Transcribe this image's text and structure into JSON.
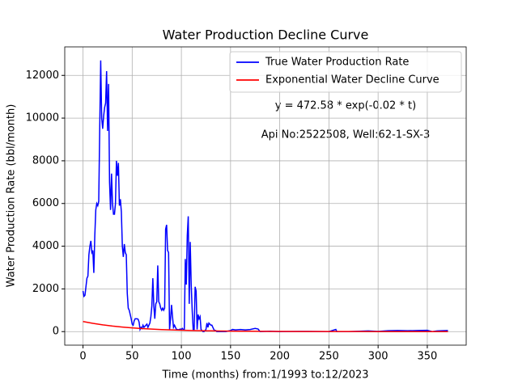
{
  "chart_data": {
    "type": "line",
    "title": "Water Production Decline Curve",
    "xlabel": "Time (months) from:1/1993 to:12/2023",
    "ylabel": "Water Production Rate (bbl/month)",
    "annotations": [
      "y = 472.58 * exp(-0.02 * t)",
      "Api No:2522508, Well:62-1-SX-3"
    ],
    "xlim": [
      -18.55,
      389.55
    ],
    "ylim": [
      -635,
      13335
    ],
    "xticks": [
      0,
      50,
      100,
      150,
      200,
      250,
      300,
      350
    ],
    "yticks": [
      0,
      2000,
      4000,
      6000,
      8000,
      10000,
      12000
    ],
    "grid": true,
    "legend": "upper right",
    "series": [
      {
        "name": "True Water Production Rate",
        "color": "#0000ff",
        "x": [
          0,
          1,
          2,
          3,
          4,
          5,
          6,
          7,
          8,
          9,
          10,
          11,
          12,
          13,
          14,
          15,
          16,
          17,
          18,
          19,
          20,
          21,
          22,
          23,
          24,
          25,
          26,
          27,
          28,
          29,
          30,
          31,
          32,
          33,
          34,
          35,
          36,
          37,
          38,
          39,
          40,
          41,
          42,
          43,
          44,
          45,
          46,
          47,
          48,
          49,
          50,
          51,
          52,
          53,
          54,
          55,
          56,
          57,
          58,
          59,
          60,
          61,
          62,
          63,
          64,
          65,
          66,
          67,
          68,
          69,
          70,
          71,
          72,
          73,
          74,
          75,
          76,
          77,
          78,
          79,
          80,
          81,
          82,
          83,
          84,
          85,
          86,
          87,
          88,
          89,
          90,
          91,
          92,
          93,
          94,
          95,
          96,
          97,
          98,
          99,
          100,
          101,
          102,
          103,
          104,
          105,
          106,
          107,
          108,
          109,
          110,
          111,
          112,
          113,
          114,
          115,
          116,
          117,
          118,
          119,
          120,
          121,
          122,
          123,
          124,
          125,
          126,
          127,
          128,
          129,
          130,
          131,
          132,
          133,
          134,
          135,
          136,
          137,
          138,
          139,
          140,
          141,
          142,
          145,
          150,
          152,
          155,
          160,
          165,
          170,
          175,
          178,
          180,
          190,
          200,
          220,
          250,
          257,
          258,
          270,
          290,
          300,
          310,
          320,
          330,
          340,
          350,
          355,
          360,
          365,
          371
        ],
        "values": [
          1900,
          1650,
          1700,
          2100,
          2500,
          2600,
          3600,
          4000,
          4250,
          3700,
          3800,
          2750,
          4500,
          5700,
          6000,
          5900,
          6100,
          9500,
          12700,
          10000,
          9500,
          10100,
          10500,
          10700,
          12200,
          9400,
          11600,
          7000,
          5700,
          7400,
          6000,
          5500,
          5500,
          6000,
          8000,
          7300,
          7900,
          5900,
          6200,
          5600,
          4000,
          3500,
          4100,
          3700,
          3600,
          1800,
          1100,
          1000,
          800,
          600,
          350,
          300,
          500,
          600,
          600,
          600,
          580,
          450,
          100,
          200,
          150,
          300,
          200,
          250,
          300,
          350,
          200,
          300,
          400,
          700,
          1200,
          2500,
          1200,
          600,
          1300,
          1400,
          3100,
          1400,
          1300,
          1100,
          1000,
          1100,
          1000,
          1100,
          4800,
          5000,
          3800,
          3700,
          100,
          600,
          1250,
          700,
          200,
          300,
          200,
          100,
          100,
          80,
          100,
          120,
          100,
          150,
          100,
          80,
          3400,
          2200,
          4500,
          5400,
          1300,
          4200,
          2200,
          1000,
          100,
          100,
          2100,
          1900,
          100,
          800,
          600,
          700,
          100,
          50,
          0,
          0,
          50,
          100,
          400,
          200,
          400,
          350,
          300,
          300,
          200,
          100,
          50,
          50,
          0,
          0,
          0,
          0,
          0,
          0,
          0,
          0,
          50,
          100,
          80,
          100,
          80,
          100,
          150,
          120,
          0,
          20,
          0,
          10,
          0,
          100,
          0,
          0,
          30,
          10,
          40,
          50,
          40,
          50,
          60,
          0,
          30,
          40,
          50
        ]
      },
      {
        "name": "Exponential Water Decline Curve",
        "color": "#ff0000",
        "x": [
          0,
          10,
          20,
          30,
          40,
          50,
          60,
          70,
          80,
          90,
          100,
          110,
          120,
          130,
          140,
          150,
          160,
          170,
          180,
          190,
          200,
          220,
          240,
          260,
          280,
          300,
          330,
          371
        ],
        "values": [
          472.58,
          386.91,
          316.78,
          259.35,
          212.34,
          173.85,
          142.33,
          116.53,
          95.41,
          78.11,
          63.96,
          52.36,
          42.87,
          35.1,
          28.74,
          23.53,
          19.26,
          15.77,
          12.91,
          10.57,
          8.66,
          5.8,
          3.89,
          2.61,
          1.75,
          1.17,
          0.64,
          0.28
        ]
      }
    ]
  }
}
